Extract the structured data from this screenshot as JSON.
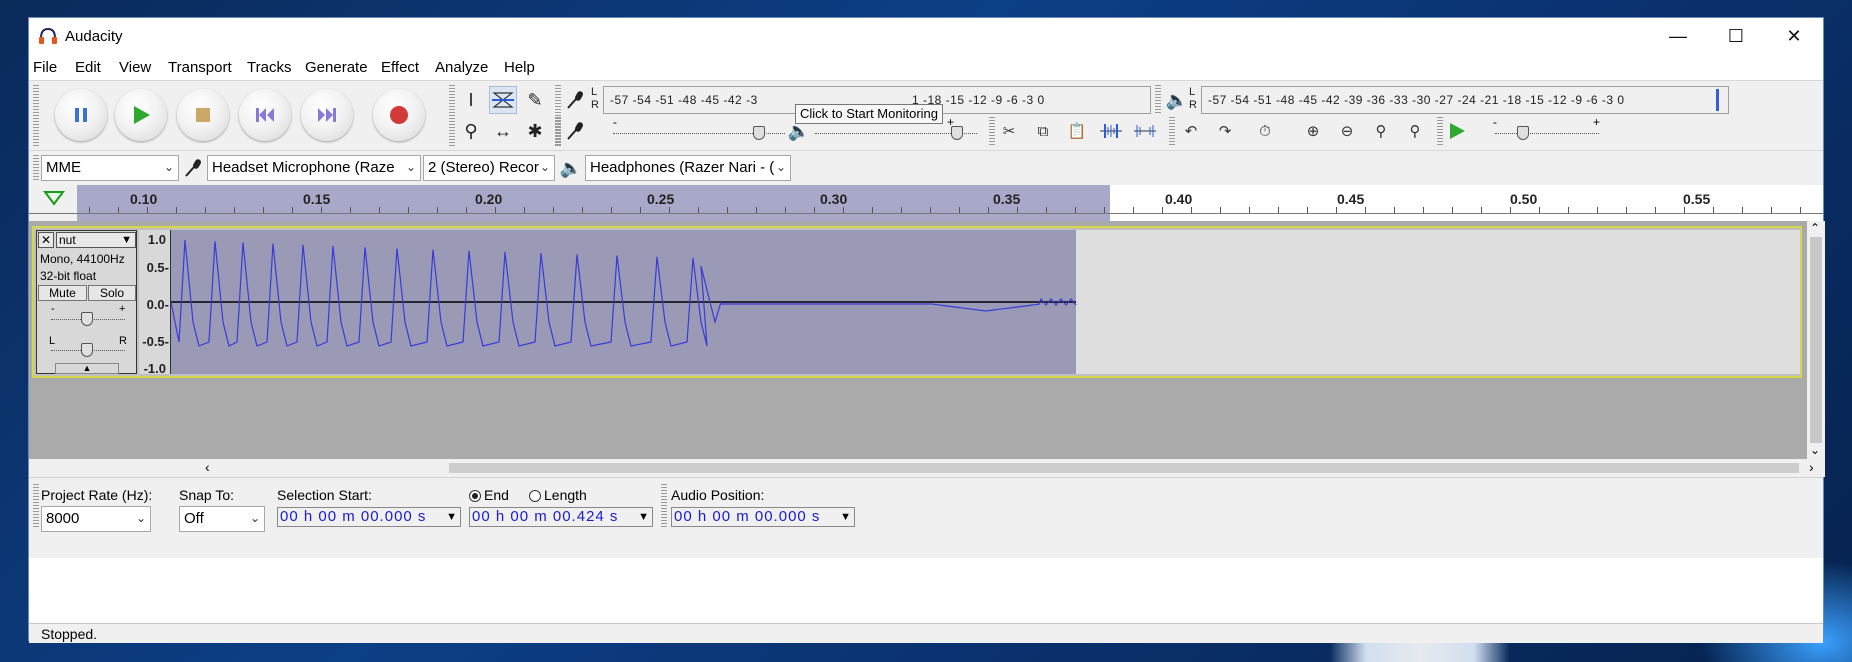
{
  "window": {
    "title": "Audacity",
    "colors": {
      "selection": "#a8a8c8",
      "waveform": "#3a3ad8",
      "track_border": "#d6d64a"
    }
  },
  "menus": [
    "File",
    "Edit",
    "View",
    "Transport",
    "Tracks",
    "Generate",
    "Effect",
    "Analyze",
    "Help"
  ],
  "transport": {
    "buttons": [
      "pause-icon",
      "play-icon",
      "stop-icon",
      "skip-start-icon",
      "skip-end-icon",
      "record-icon"
    ]
  },
  "meters": {
    "record_scale": "-57 -54 -51 -48 -45 -42 -3",
    "record_scale_tail": "1 -18 -15 -12 -9 -6 -3 0",
    "tooltip": "Click to Start Monitoring",
    "playback_scale": "-57 -54 -51 -48 -45 -42 -39 -36 -33 -30 -27 -24 -21 -18 -15 -12 -9 -6 -3 0",
    "l": "L",
    "r": "R"
  },
  "mixer": {
    "minus": "-",
    "plus": "+"
  },
  "devices": {
    "host": "MME",
    "input": "Headset Microphone (Raze",
    "channels": "2 (Stereo) Recor",
    "output": "Headphones (Razer Nari - ("
  },
  "ruler": {
    "labels": [
      "0.10",
      "0.15",
      "0.20",
      "0.25",
      "0.30",
      "0.35",
      "0.40",
      "0.45",
      "0.50",
      "0.55"
    ]
  },
  "track": {
    "name": "nut",
    "info1": "Mono, 44100Hz",
    "info2": "32-bit float",
    "mute": "Mute",
    "solo": "Solo",
    "gain_minus": "-",
    "gain_plus": "+",
    "pan_l": "L",
    "pan_r": "R",
    "scale": [
      "1.0",
      "0.5-",
      "0.0-",
      "-0.5-",
      "-1.0"
    ]
  },
  "selection_toolbar": {
    "project_rate_label": "Project Rate (Hz):",
    "project_rate": "8000",
    "snap_to_label": "Snap To:",
    "snap_to": "Off",
    "selection_start_label": "Selection Start:",
    "end_label": "End",
    "length_label": "Length",
    "audio_position_label": "Audio Position:",
    "selection_start": "00 h 00 m 00.000 s",
    "selection_end": "00 h 00 m 00.424 s",
    "audio_position": "00 h 00 m 00.000 s"
  },
  "status": {
    "text": "Stopped."
  }
}
